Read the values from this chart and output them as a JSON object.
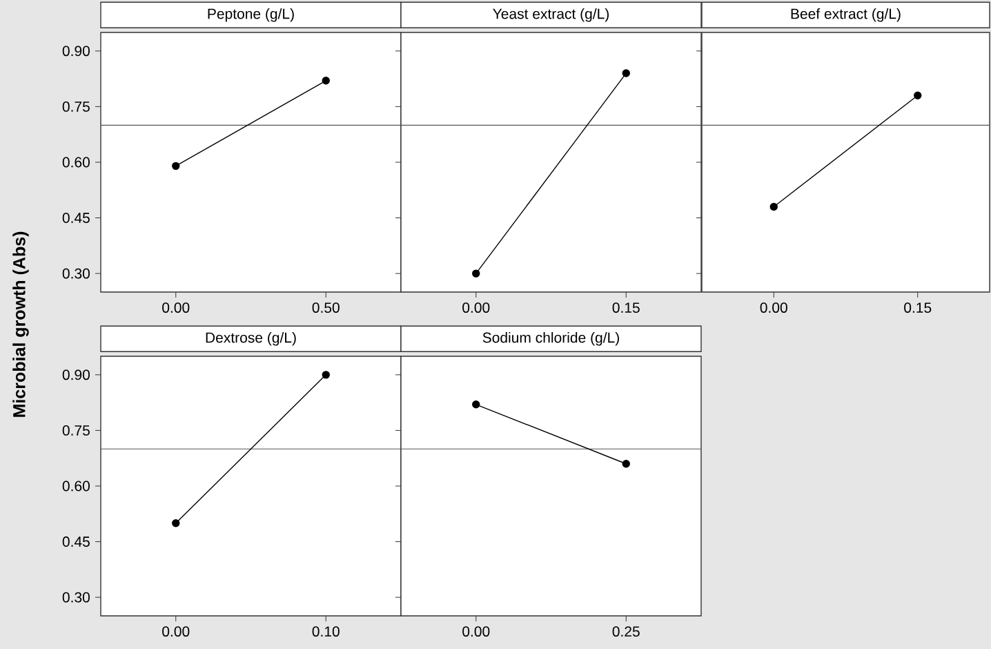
{
  "chart_data": [
    {
      "type": "line",
      "title": "Peptone (g/L)",
      "ylabel": "Microbial growth (Abs)",
      "categories": [
        "0.00",
        "0.50"
      ],
      "values": [
        0.59,
        0.82
      ],
      "color": "#000000",
      "marker": "circle",
      "ylim": [
        0.25,
        0.95
      ],
      "yticks": [
        {
          "value": 0.3,
          "label": "0.30"
        },
        {
          "value": 0.45,
          "label": "0.45"
        },
        {
          "value": 0.6,
          "label": "0.60"
        },
        {
          "value": 0.75,
          "label": "0.75"
        },
        {
          "value": 0.9,
          "label": "0.90"
        }
      ],
      "ref_lines": [
        {
          "axis": "y",
          "value": 0.7,
          "color": "#555555"
        }
      ]
    },
    {
      "type": "line",
      "title": "Yeast extract (g/L)",
      "categories": [
        "0.00",
        "0.15"
      ],
      "values": [
        0.3,
        0.84
      ],
      "color": "#000000",
      "marker": "circle",
      "ylim": [
        0.25,
        0.95
      ],
      "yticks": [
        0.3,
        0.45,
        0.6,
        0.75,
        0.9
      ],
      "tick_labels": "x",
      "ref_lines": [
        {
          "axis": "y",
          "value": 0.7,
          "color": "#555555"
        }
      ]
    },
    {
      "type": "line",
      "title": "Beef extract (g/L)",
      "categories": [
        "0.00",
        "0.15"
      ],
      "values": [
        0.48,
        0.78
      ],
      "color": "#000000",
      "marker": "circle",
      "ylim": [
        0.25,
        0.95
      ],
      "yticks": [
        0.3,
        0.45,
        0.6,
        0.75,
        0.9
      ],
      "tick_labels": "x",
      "ref_lines": [
        {
          "axis": "y",
          "value": 0.7,
          "color": "#555555"
        }
      ]
    },
    {
      "type": "line",
      "title": "Dextrose (g/L)",
      "categories": [
        "0.00",
        "0.10"
      ],
      "values": [
        0.5,
        0.9
      ],
      "color": "#000000",
      "marker": "circle",
      "ylim": [
        0.25,
        0.95
      ],
      "yticks": [
        {
          "value": 0.3,
          "label": "0.30"
        },
        {
          "value": 0.45,
          "label": "0.45"
        },
        {
          "value": 0.6,
          "label": "0.60"
        },
        {
          "value": 0.75,
          "label": "0.75"
        },
        {
          "value": 0.9,
          "label": "0.90"
        }
      ],
      "ref_lines": [
        {
          "axis": "y",
          "value": 0.7,
          "color": "#555555"
        }
      ]
    },
    {
      "type": "line",
      "title": "Sodium chloride (g/L)",
      "categories": [
        "0.00",
        "0.25"
      ],
      "values": [
        0.82,
        0.66
      ],
      "color": "#000000",
      "marker": "circle",
      "ylim": [
        0.25,
        0.95
      ],
      "yticks": [
        0.3,
        0.45,
        0.6,
        0.75,
        0.9
      ],
      "tick_labels": "x",
      "ref_lines": [
        {
          "axis": "y",
          "value": 0.7,
          "color": "#555555"
        }
      ]
    }
  ]
}
